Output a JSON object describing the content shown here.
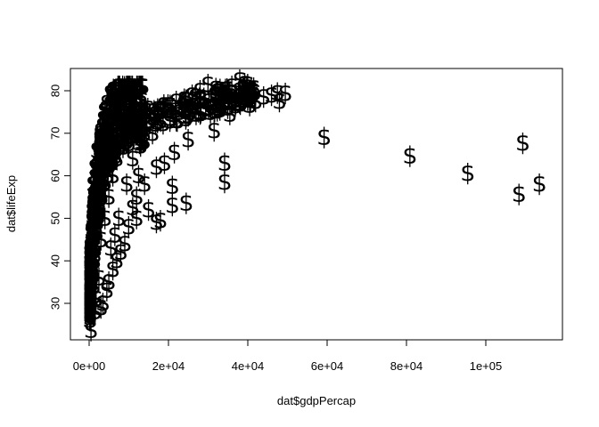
{
  "chart_data": {
    "type": "scatter",
    "marker": "$",
    "marker_color": "#000000",
    "xlabel": "dat$gdpPercap",
    "ylabel": "dat$lifeExp",
    "xlim": [
      0,
      115000
    ],
    "ylim": [
      23,
      83
    ],
    "x_ticks": [
      {
        "value": 0,
        "label": "0e+00"
      },
      {
        "value": 20000,
        "label": "2e+04"
      },
      {
        "value": 40000,
        "label": "4e+04"
      },
      {
        "value": 60000,
        "label": "6e+04"
      },
      {
        "value": 80000,
        "label": "8e+04"
      },
      {
        "value": 100000,
        "label": "1e+05"
      }
    ],
    "y_ticks": [
      {
        "value": 30,
        "label": "30"
      },
      {
        "value": 40,
        "label": "40"
      },
      {
        "value": 50,
        "label": "50"
      },
      {
        "value": 60,
        "label": "60"
      },
      {
        "value": 70,
        "label": "70"
      },
      {
        "value": 80,
        "label": "80"
      }
    ],
    "grid": false,
    "points": [
      {
        "x": 59265,
        "y": 69.0
      },
      {
        "x": 80895,
        "y": 64.6
      },
      {
        "x": 95458,
        "y": 60.5
      },
      {
        "x": 108382,
        "y": 55.6
      },
      {
        "x": 109348,
        "y": 67.7
      },
      {
        "x": 113523,
        "y": 58.0
      },
      {
        "x": 34167,
        "y": 63.0
      },
      {
        "x": 34167,
        "y": 58.5
      },
      {
        "x": 31540,
        "y": 70.6
      },
      {
        "x": 21000,
        "y": 57.5
      },
      {
        "x": 21000,
        "y": 53.0
      },
      {
        "x": 24500,
        "y": 53.5
      },
      {
        "x": 18000,
        "y": 49.5
      },
      {
        "x": 17000,
        "y": 49.0
      },
      {
        "x": 25000,
        "y": 68.5
      },
      {
        "x": 21500,
        "y": 65.5
      },
      {
        "x": 19000,
        "y": 63.0
      },
      {
        "x": 17000,
        "y": 62.0
      },
      {
        "x": 12500,
        "y": 60.0
      },
      {
        "x": 12000,
        "y": 55.0
      },
      {
        "x": 10000,
        "y": 48.0
      },
      {
        "x": 9000,
        "y": 44.0
      },
      {
        "x": 8000,
        "y": 42.0
      },
      {
        "x": 7000,
        "y": 40.0
      },
      {
        "x": 6000,
        "y": 38.0
      },
      {
        "x": 5000,
        "y": 35.0
      },
      {
        "x": 4500,
        "y": 33.0
      },
      {
        "x": 3500,
        "y": 30.0
      },
      {
        "x": 3000,
        "y": 29.0
      },
      {
        "x": 1500,
        "y": 28.0
      },
      {
        "x": 500,
        "y": 23.6
      },
      {
        "x": 12000,
        "y": 50.0
      },
      {
        "x": 11000,
        "y": 52.5
      },
      {
        "x": 15000,
        "y": 52.0
      },
      {
        "x": 14000,
        "y": 58.0
      },
      {
        "x": 9500,
        "y": 58.0
      },
      {
        "x": 11000,
        "y": 64.0
      },
      {
        "x": 13000,
        "y": 67.0
      },
      {
        "x": 16000,
        "y": 70.0
      },
      {
        "x": 22000,
        "y": 73.0
      },
      {
        "x": 27000,
        "y": 74.5
      },
      {
        "x": 33000,
        "y": 75.5
      },
      {
        "x": 37000,
        "y": 77.0
      },
      {
        "x": 40500,
        "y": 76.5
      },
      {
        "x": 42000,
        "y": 77.5
      },
      {
        "x": 44000,
        "y": 78.5
      },
      {
        "x": 46000,
        "y": 79.0
      },
      {
        "x": 47500,
        "y": 79.5
      },
      {
        "x": 49500,
        "y": 79.4
      },
      {
        "x": 48000,
        "y": 77.5
      },
      {
        "x": 40000,
        "y": 81.5
      },
      {
        "x": 38000,
        "y": 82.5
      },
      {
        "x": 36000,
        "y": 81.0
      },
      {
        "x": 34000,
        "y": 78.5
      },
      {
        "x": 35500,
        "y": 74.5
      },
      {
        "x": 32000,
        "y": 80.5
      },
      {
        "x": 30000,
        "y": 81.5
      },
      {
        "x": 28000,
        "y": 80.0
      },
      {
        "x": 26000,
        "y": 79.0
      },
      {
        "x": 24000,
        "y": 78.0
      },
      {
        "x": 22000,
        "y": 77.5
      },
      {
        "x": 20000,
        "y": 76.0
      },
      {
        "x": 18000,
        "y": 75.5
      },
      {
        "x": 14000,
        "y": 74.0
      },
      {
        "x": 12000,
        "y": 73.0
      },
      {
        "x": 10000,
        "y": 78.5
      },
      {
        "x": 8000,
        "y": 77.0
      },
      {
        "x": 13000,
        "y": 78.0
      },
      {
        "x": 6000,
        "y": 74.0
      },
      {
        "x": 4000,
        "y": 73.0
      },
      {
        "x": 3000,
        "y": 70.0
      },
      {
        "x": 2000,
        "y": 66.0
      },
      {
        "x": 1500,
        "y": 62.0
      },
      {
        "x": 1000,
        "y": 58.0
      },
      {
        "x": 800,
        "y": 52.0
      },
      {
        "x": 600,
        "y": 47.0
      },
      {
        "x": 700,
        "y": 42.0
      },
      {
        "x": 900,
        "y": 38.0
      },
      {
        "x": 1200,
        "y": 34.0
      },
      {
        "x": 1800,
        "y": 31.0
      },
      {
        "x": 2500,
        "y": 36.0
      },
      {
        "x": 3000,
        "y": 45.0
      },
      {
        "x": 4000,
        "y": 50.0
      },
      {
        "x": 5000,
        "y": 55.0
      },
      {
        "x": 6000,
        "y": 60.0
      },
      {
        "x": 7000,
        "y": 64.0
      },
      {
        "x": 8000,
        "y": 68.0
      },
      {
        "x": 9000,
        "y": 71.0
      },
      {
        "x": 7500,
        "y": 50.0
      },
      {
        "x": 6500,
        "y": 46.0
      },
      {
        "x": 5500,
        "y": 43.0
      }
    ]
  }
}
